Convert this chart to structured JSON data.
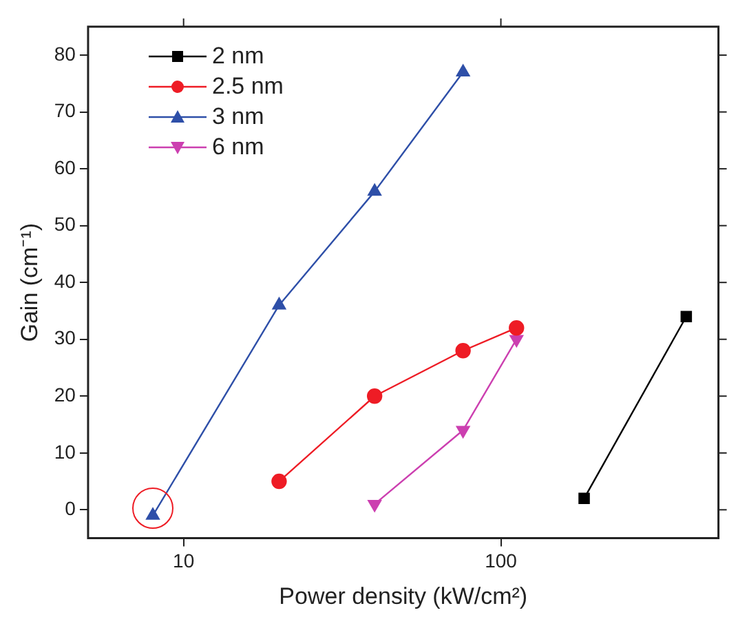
{
  "chart_data": {
    "type": "line",
    "xlabel": "Power density (kW/cm²)",
    "ylabel": "Gain (cm⁻¹)",
    "log": "x",
    "xlim": [
      5,
      485
    ],
    "xticks": [
      10,
      100
    ],
    "ylim": [
      -5,
      85
    ],
    "yticks": [
      0,
      10,
      20,
      30,
      40,
      50,
      60,
      70,
      80
    ],
    "grid": false,
    "legend": "top left",
    "line_style": "solid",
    "series": [
      {
        "name": "2 nm",
        "color": "#000000",
        "marker": "square",
        "x": [
          183,
          384
        ],
        "values": [
          2,
          34
        ]
      },
      {
        "name": "2.5 nm",
        "color": "#ee1c25",
        "marker": "circle",
        "x": [
          20,
          40,
          76,
          112
        ],
        "values": [
          5,
          20,
          28,
          32
        ]
      },
      {
        "name": "3 nm",
        "color": "#2e4fa8",
        "marker": "triangle",
        "x": [
          8,
          20,
          40,
          76
        ],
        "values": [
          -1,
          36,
          56,
          77
        ]
      },
      {
        "name": "6 nm",
        "color": "#cc3fb0",
        "marker": "triangle-down",
        "x": [
          40,
          76,
          112
        ],
        "values": [
          1,
          14,
          30
        ]
      }
    ]
  }
}
